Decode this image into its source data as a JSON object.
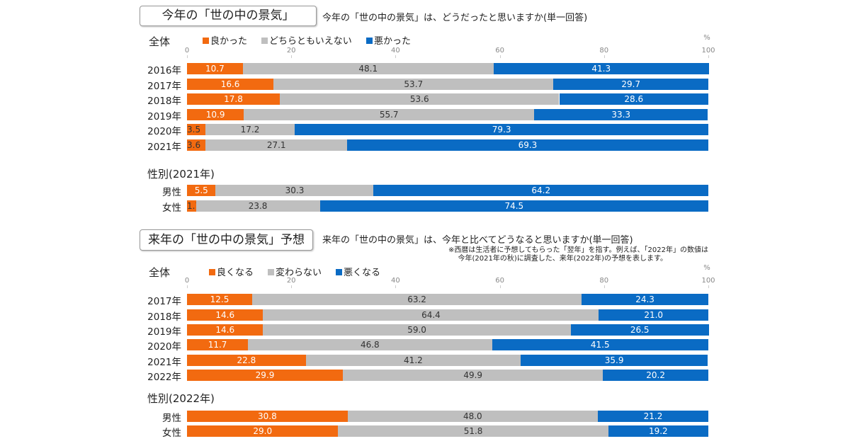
{
  "sections": [
    {
      "title": "今年の「世の中の景気」",
      "question": "今年の「世の中の景気」は、どうだったと思いますか(単一回答)",
      "note": ""
    },
    {
      "title": "来年の「世の中の景気」予想",
      "question": "来年の「世の中の景気」は、今年と比べてどうなると思いますか(単一回答)",
      "note_line1": "※西暦は生活者に予想してもらった「翌年」を指す。例えば、「2022年」の数値は",
      "note_line2": "今年(2021年の秋)に調査した、来年(2022年)の予想を表します。"
    }
  ],
  "colors": {
    "positive": "#f26a10",
    "neutral": "#bfbfbf",
    "negative": "#0a6bc4"
  },
  "chart_data": [
    {
      "type": "bar",
      "orientation": "horizontal",
      "stacked": true,
      "group_label": "全体",
      "unit": "%",
      "xlim": [
        0,
        100
      ],
      "ticks": [
        "0",
        "20",
        "40",
        "60",
        "80",
        "100"
      ],
      "categories": [
        "2016年",
        "2017年",
        "2018年",
        "2019年",
        "2020年",
        "2021年"
      ],
      "series": [
        {
          "name": "良かった",
          "values": [
            10.7,
            16.6,
            17.8,
            10.9,
            3.5,
            3.6
          ]
        },
        {
          "name": "どちらともいえない",
          "values": [
            48.1,
            53.7,
            53.6,
            55.7,
            17.2,
            27.1
          ]
        },
        {
          "name": "悪かった",
          "values": [
            41.3,
            29.7,
            28.6,
            33.3,
            79.3,
            69.3
          ]
        }
      ]
    },
    {
      "type": "bar",
      "orientation": "horizontal",
      "stacked": true,
      "group_label": "性別(2021年)",
      "xlim": [
        0,
        100
      ],
      "categories": [
        "男性",
        "女性"
      ],
      "series": [
        {
          "name": "良かった",
          "values": [
            5.5,
            1.7
          ]
        },
        {
          "name": "どちらともいえない",
          "values": [
            30.3,
            23.8
          ]
        },
        {
          "name": "悪かった",
          "values": [
            64.2,
            74.5
          ]
        }
      ]
    },
    {
      "type": "bar",
      "orientation": "horizontal",
      "stacked": true,
      "group_label": "全体",
      "unit": "%",
      "xlim": [
        0,
        100
      ],
      "ticks": [
        "0",
        "20",
        "40",
        "60",
        "80",
        "100"
      ],
      "categories": [
        "2017年",
        "2018年",
        "2019年",
        "2020年",
        "2021年",
        "2022年"
      ],
      "series": [
        {
          "name": "良くなる",
          "values": [
            12.5,
            14.6,
            14.6,
            11.7,
            22.8,
            29.9
          ]
        },
        {
          "name": "変わらない",
          "values": [
            63.2,
            64.4,
            59.0,
            46.8,
            41.2,
            49.9
          ]
        },
        {
          "name": "悪くなる",
          "values": [
            24.3,
            21.0,
            26.5,
            41.5,
            35.9,
            20.2
          ]
        }
      ]
    },
    {
      "type": "bar",
      "orientation": "horizontal",
      "stacked": true,
      "group_label": "性別(2022年)",
      "xlim": [
        0,
        100
      ],
      "categories": [
        "男性",
        "女性"
      ],
      "series": [
        {
          "name": "良くなる",
          "values": [
            30.8,
            29.0
          ]
        },
        {
          "name": "変わらない",
          "values": [
            48.0,
            51.8
          ]
        },
        {
          "name": "悪くなる",
          "values": [
            21.2,
            19.2
          ]
        }
      ]
    }
  ]
}
